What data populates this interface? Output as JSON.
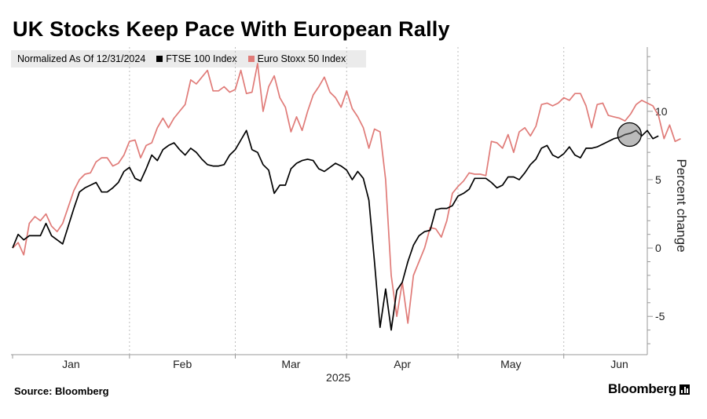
{
  "title": "UK Stocks Keep Pace With European Rally",
  "legend": {
    "note": "Normalized As Of 12/31/2024",
    "items": [
      {
        "label": "FTSE 100 Index",
        "color": "#000000"
      },
      {
        "label": "Euro Stoxx 50 Index",
        "color": "#e07b78"
      }
    ]
  },
  "source": "Source: Bloomberg",
  "brand": "Bloomberg",
  "chart_data": {
    "type": "line",
    "title": "UK Stocks Keep Pace With European Rally",
    "xlabel": "2025",
    "ylabel": "Percent change",
    "ylim": [
      -7.8,
      14.7
    ],
    "yticks": [
      -5,
      0,
      5,
      10
    ],
    "x_range": [
      0,
      114
    ],
    "months": [
      {
        "label": "Jan",
        "start": 0,
        "mid": 10.5
      },
      {
        "label": "Feb",
        "start": 21,
        "mid": 30.5
      },
      {
        "label": "Mar",
        "start": 40,
        "mid": 50
      },
      {
        "label": "Apr",
        "start": 60,
        "mid": 70
      },
      {
        "label": "May",
        "start": 80,
        "mid": 89.5
      },
      {
        "label": "Jun",
        "start": 99,
        "mid": 109
      }
    ],
    "year_label": "2025",
    "highlight": {
      "x": 110.8,
      "y": 8.3
    },
    "series": [
      {
        "name": "FTSE 100 Index",
        "color": "#000000",
        "values": [
          0.0,
          1.0,
          0.6,
          0.9,
          0.9,
          0.9,
          1.8,
          0.9,
          0.6,
          0.3,
          1.6,
          2.9,
          4.1,
          4.4,
          4.6,
          4.8,
          4.1,
          4.1,
          4.4,
          4.8,
          5.6,
          5.9,
          5.1,
          4.9,
          5.8,
          6.8,
          6.4,
          7.2,
          7.5,
          7.7,
          7.2,
          6.8,
          7.3,
          7.0,
          6.5,
          6.1,
          6.0,
          6.0,
          6.1,
          6.8,
          7.2,
          7.9,
          8.6,
          7.2,
          7.0,
          6.1,
          5.7,
          4.0,
          4.6,
          4.6,
          5.8,
          6.2,
          6.4,
          6.5,
          6.4,
          5.8,
          5.6,
          5.9,
          6.2,
          6.0,
          5.7,
          5.0,
          5.6,
          5.1,
          3.5,
          -1.0,
          -5.8,
          -3.0,
          -6.0,
          -3.1,
          -2.5,
          -1.0,
          0.2,
          0.9,
          1.2,
          1.3,
          2.8,
          2.9,
          2.9,
          3.1,
          3.8,
          4.0,
          4.3,
          5.1,
          5.1,
          5.1,
          4.8,
          4.4,
          4.6,
          5.2,
          5.2,
          5.0,
          5.5,
          6.1,
          6.5,
          7.3,
          7.5,
          6.8,
          6.6,
          6.9,
          7.4,
          6.8,
          6.6,
          7.3,
          7.3,
          7.4,
          7.6,
          7.8,
          8.0,
          8.1,
          8.3,
          8.4,
          8.6,
          8.2,
          8.6,
          8.0,
          8.2
        ]
      },
      {
        "name": "Euro Stoxx 50 Index",
        "color": "#e07b78",
        "values": [
          0.0,
          0.4,
          -0.5,
          1.8,
          2.3,
          2.0,
          2.5,
          1.6,
          1.2,
          1.8,
          3.0,
          4.2,
          5.0,
          5.4,
          5.5,
          6.3,
          6.6,
          6.6,
          6.0,
          6.2,
          6.8,
          7.8,
          7.9,
          6.6,
          7.5,
          7.7,
          8.8,
          9.5,
          8.8,
          9.5,
          10.0,
          10.5,
          12.3,
          12.0,
          12.5,
          13.0,
          11.5,
          11.5,
          11.8,
          11.4,
          11.6,
          13.0,
          11.3,
          11.4,
          13.5,
          10.0,
          11.8,
          12.6,
          11.0,
          10.3,
          8.5,
          9.6,
          8.6,
          10.0,
          11.2,
          11.8,
          12.5,
          11.4,
          11.0,
          10.3,
          11.5,
          10.2,
          9.6,
          8.8,
          7.3,
          8.7,
          8.5,
          5.0,
          -2.0,
          -5.0,
          -2.5,
          -5.5,
          -2.0,
          -1.0,
          0.0,
          1.5,
          1.4,
          0.8,
          2.0,
          4.0,
          4.5,
          4.9,
          5.5,
          5.4,
          5.4,
          5.3,
          7.8,
          7.7,
          7.3,
          8.3,
          7.0,
          8.5,
          8.8,
          8.2,
          8.9,
          10.5,
          10.6,
          10.4,
          10.6,
          11.0,
          10.8,
          11.3,
          11.3,
          10.4,
          8.8,
          10.5,
          10.6,
          9.7,
          9.6,
          9.5,
          9.3,
          9.8,
          10.5,
          10.8,
          10.6,
          10.4,
          9.7,
          8.0,
          9.0,
          7.8,
          8.0
        ]
      }
    ]
  }
}
